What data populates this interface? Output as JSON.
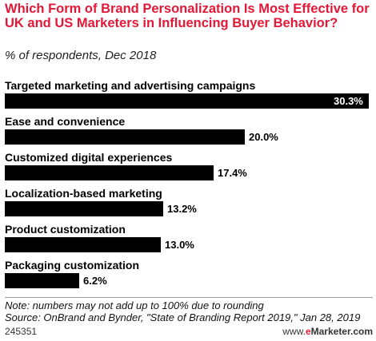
{
  "header": {
    "title": "Which Form of Brand Personalization Is Most Effective for UK and US Marketers in Influencing Buyer Behavior?",
    "subtitle": "% of respondents, Dec 2018"
  },
  "footer": {
    "note": "Note: numbers may not add up to 100% due to rounding",
    "source": "Source: OnBrand and Bynder, \"State of Branding Report 2019,\" Jan 28, 2019",
    "chart_id": "245351",
    "brand_www": "www.",
    "brand_e": "e",
    "brand_name": "Marketer.com"
  },
  "colors": {
    "title": "#e31837",
    "bar": "#000000",
    "brand_accent": "#e31837"
  },
  "chart_data": {
    "type": "bar",
    "orientation": "horizontal",
    "categories": [
      "Targeted marketing and advertising campaigns",
      "Ease and convenience",
      "Customized digital experiences",
      "Localization-based marketing",
      "Product customization",
      "Packaging customization"
    ],
    "values": [
      30.3,
      20.0,
      17.4,
      13.2,
      13.0,
      6.2
    ],
    "labels": [
      "30.3%",
      "20.0%",
      "17.4%",
      "13.2%",
      "13.0%",
      "6.2%"
    ],
    "unit": "%",
    "title": "Which Form of Brand Personalization Is Most Effective for UK and US Marketers in Influencing Buyer Behavior?",
    "subtitle": "% of respondents, Dec 2018",
    "xlabel": "",
    "ylabel": "",
    "xlim": [
      0,
      30.3
    ],
    "grid": false,
    "legend": false
  }
}
